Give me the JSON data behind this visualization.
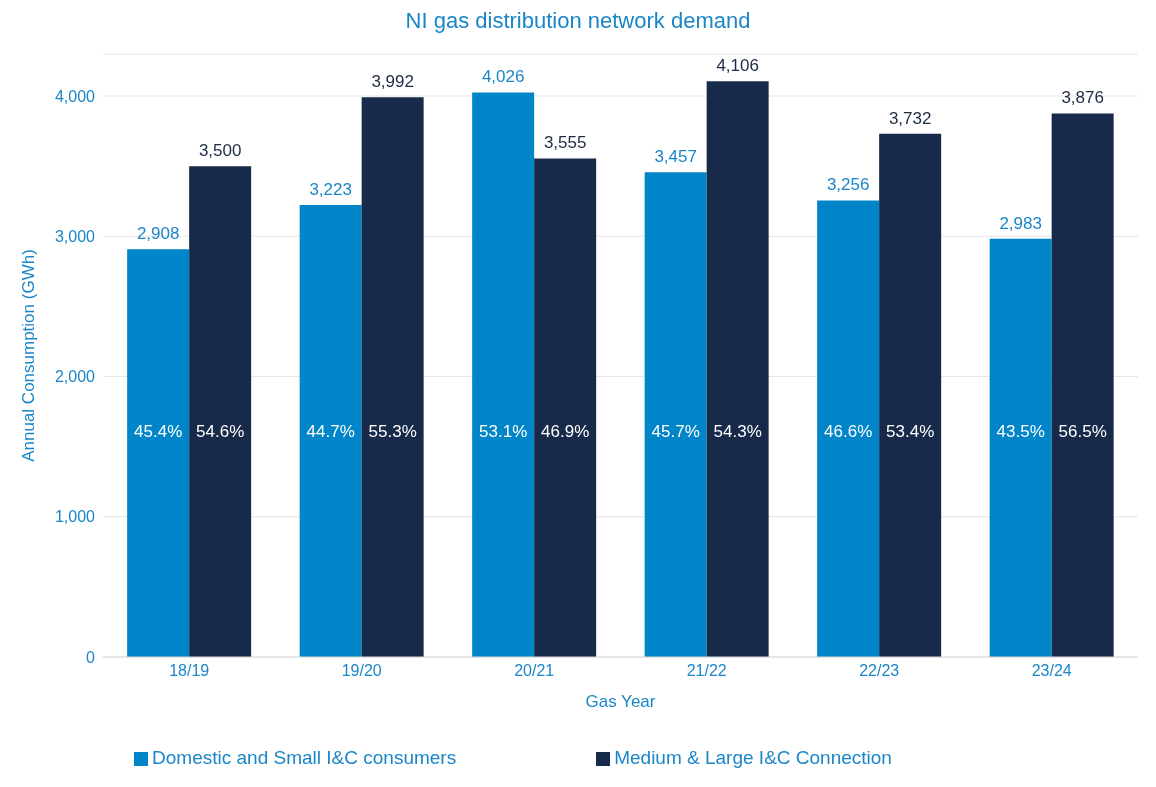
{
  "chart_data": {
    "type": "bar",
    "title": "NI gas distribution network demand",
    "xlabel": "Gas Year",
    "ylabel": "Annual Consumption (GWh)",
    "categories": [
      "18/19",
      "19/20",
      "20/21",
      "21/22",
      "22/23",
      "23/24"
    ],
    "series": [
      {
        "name": "Domestic and Small I&C consumers",
        "color": "#0085c8",
        "values": [
          2908,
          3223,
          4026,
          3457,
          3256,
          2983
        ],
        "value_labels": [
          "2,908",
          "3,223",
          "4,026",
          "3,457",
          "3,256",
          "2,983"
        ]
      },
      {
        "name": "Medium & Large I&C Connection",
        "color": "#172a4a",
        "values": [
          3500,
          3992,
          3555,
          4106,
          3732,
          3876
        ],
        "value_labels": [
          "3,500",
          "3,992",
          "3,555",
          "4,106",
          "3,732",
          "3,876"
        ]
      }
    ],
    "annotations": [
      {
        "text": "45.4%",
        "x": "18/19",
        "y": 1600
      },
      {
        "text": "54.6%",
        "x": "18/19",
        "y": 1600
      },
      {
        "text": "44.7%",
        "x": "19/20",
        "y": 1600
      },
      {
        "text": "55.3%",
        "x": "19/20",
        "y": 1600
      },
      {
        "text": "53.1%",
        "x": "20/21",
        "y": 1600
      },
      {
        "text": "46.9%",
        "x": "20/21",
        "y": 1600
      },
      {
        "text": "45.7%",
        "x": "21/22",
        "y": 1600
      },
      {
        "text": "54.3%",
        "x": "21/22",
        "y": 1600
      },
      {
        "text": "46.6%",
        "x": "22/23",
        "y": 1600
      },
      {
        "text": "53.4%",
        "x": "22/23",
        "y": 1600
      },
      {
        "text": "43.5%",
        "x": "23/24",
        "y": 1600
      },
      {
        "text": "56.5%",
        "x": "23/24",
        "y": 1600
      }
    ],
    "ylim": [
      0,
      4300
    ],
    "yticks": [
      0,
      {
        "value": 1000,
        "label": "1,000"
      },
      {
        "value": 2000,
        "label": "2,000"
      },
      {
        "value": 3000,
        "label": "3,000"
      },
      {
        "value": 4000,
        "label": "4,000"
      }
    ],
    "grid": "y",
    "legend": "bottom"
  }
}
